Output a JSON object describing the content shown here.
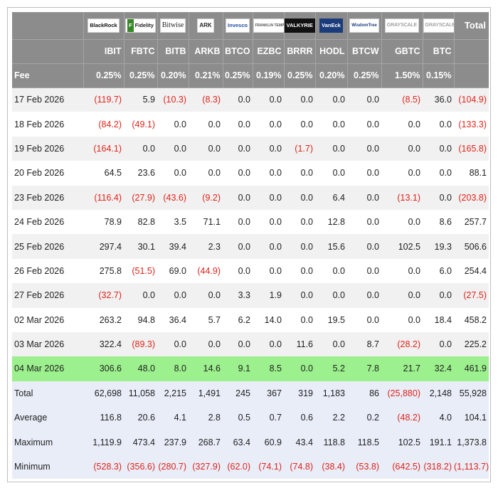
{
  "logos": [
    {
      "name": "blackrock-logo",
      "text": "BlackRock"
    },
    {
      "name": "fidelity-logo",
      "text": "Fidelity"
    },
    {
      "name": "bitwise-logo",
      "text": "Bitwise"
    },
    {
      "name": "ark-logo",
      "text": "ARK"
    },
    {
      "name": "invesco-logo",
      "text": "Invesco"
    },
    {
      "name": "franklin-logo",
      "text": "FRANKLIN TEMPLETON"
    },
    {
      "name": "valkyrie-logo",
      "text": "VALKYRIE"
    },
    {
      "name": "vaneck-logo",
      "text": "VanEck"
    },
    {
      "name": "wisdomtree-logo",
      "text": "WisdomTree"
    },
    {
      "name": "grayscale-logo",
      "text": "GRAYSCALE"
    },
    {
      "name": "grayscale-mini-logo",
      "text": "GRAYSCALE"
    }
  ],
  "total_header": "Total",
  "tickers": [
    "IBIT",
    "FBTC",
    "BITB",
    "ARKB",
    "BTCO",
    "EZBC",
    "BRRR",
    "HODL",
    "BTCW",
    "GBTC",
    "BTC"
  ],
  "fee_label": "Fee",
  "fees": [
    "0.25%",
    "0.25%",
    "0.20%",
    "0.21%",
    "0.25%",
    "0.19%",
    "0.25%",
    "0.20%",
    "0.25%",
    "1.50%",
    "0.15%"
  ],
  "rows": [
    {
      "date": "17 Feb 2026",
      "values": [
        "(119.7)",
        "5.9",
        "(10.3)",
        "(8.3)",
        "0.0",
        "0.0",
        "0.0",
        "0.0",
        "0.0",
        "(8.5)",
        "36.0",
        "(104.9)"
      ]
    },
    {
      "date": "18 Feb 2026",
      "values": [
        "(84.2)",
        "(49.1)",
        "0.0",
        "0.0",
        "0.0",
        "0.0",
        "0.0",
        "0.0",
        "0.0",
        "0.0",
        "0.0",
        "(133.3)"
      ]
    },
    {
      "date": "19 Feb 2026",
      "values": [
        "(164.1)",
        "0.0",
        "0.0",
        "0.0",
        "0.0",
        "0.0",
        "(1.7)",
        "0.0",
        "0.0",
        "0.0",
        "0.0",
        "(165.8)"
      ]
    },
    {
      "date": "20 Feb 2026",
      "values": [
        "64.5",
        "23.6",
        "0.0",
        "0.0",
        "0.0",
        "0.0",
        "0.0",
        "0.0",
        "0.0",
        "0.0",
        "0.0",
        "88.1"
      ]
    },
    {
      "date": "23 Feb 2026",
      "values": [
        "(116.4)",
        "(27.9)",
        "(43.6)",
        "(9.2)",
        "0.0",
        "0.0",
        "0.0",
        "6.4",
        "0.0",
        "(13.1)",
        "0.0",
        "(203.8)"
      ]
    },
    {
      "date": "24 Feb 2026",
      "values": [
        "78.9",
        "82.8",
        "3.5",
        "71.1",
        "0.0",
        "0.0",
        "0.0",
        "12.8",
        "0.0",
        "0.0",
        "8.6",
        "257.7"
      ]
    },
    {
      "date": "25 Feb 2026",
      "values": [
        "297.4",
        "30.1",
        "39.4",
        "2.3",
        "0.0",
        "0.0",
        "0.0",
        "15.6",
        "0.0",
        "102.5",
        "19.3",
        "506.6"
      ]
    },
    {
      "date": "26 Feb 2026",
      "values": [
        "275.8",
        "(51.5)",
        "69.0",
        "(44.9)",
        "0.0",
        "0.0",
        "0.0",
        "0.0",
        "0.0",
        "0.0",
        "6.0",
        "254.4"
      ]
    },
    {
      "date": "27 Feb 2026",
      "values": [
        "(32.7)",
        "0.0",
        "0.0",
        "0.0",
        "3.3",
        "1.9",
        "0.0",
        "0.0",
        "0.0",
        "0.0",
        "0.0",
        "(27.5)"
      ]
    },
    {
      "date": "02 Mar 2026",
      "values": [
        "263.2",
        "94.8",
        "36.4",
        "5.7",
        "6.2",
        "14.0",
        "0.0",
        "19.5",
        "0.0",
        "0.0",
        "18.4",
        "458.2"
      ]
    },
    {
      "date": "03 Mar 2026",
      "values": [
        "322.4",
        "(89.3)",
        "0.0",
        "0.0",
        "0.0",
        "0.0",
        "11.6",
        "0.0",
        "8.7",
        "(28.2)",
        "0.0",
        "225.2"
      ]
    },
    {
      "date": "04 Mar 2026",
      "values": [
        "306.6",
        "48.0",
        "8.0",
        "14.6",
        "9.1",
        "8.5",
        "0.0",
        "5.2",
        "7.8",
        "21.7",
        "32.4",
        "461.9"
      ]
    }
  ],
  "summary": [
    {
      "label": "Total",
      "values": [
        "62,698",
        "11,058",
        "2,215",
        "1,491",
        "245",
        "367",
        "319",
        "1,183",
        "86",
        "(25,880)",
        "2,148",
        "55,928"
      ]
    },
    {
      "label": "Average",
      "values": [
        "116.8",
        "20.6",
        "4.1",
        "2.8",
        "0.5",
        "0.7",
        "0.6",
        "2.2",
        "0.2",
        "(48.2)",
        "4.0",
        "104.1"
      ]
    },
    {
      "label": "Maximum",
      "values": [
        "1,119.9",
        "473.4",
        "237.9",
        "268.7",
        "63.4",
        "60.9",
        "43.4",
        "118.8",
        "118.5",
        "102.5",
        "191.1",
        "1,373.8"
      ]
    },
    {
      "label": "Minimum",
      "values": [
        "(528.3)",
        "(356.6)",
        "(280.7)",
        "(327.9)",
        "(62.0)",
        "(74.1)",
        "(74.8)",
        "(38.4)",
        "(53.8)",
        "(642.5)",
        "(318.2)",
        "(1,113.7)"
      ]
    }
  ],
  "colors": {
    "header_bg": "#8c8c8c",
    "negative": "#e0241b",
    "highlight": "#9cf08d",
    "summary_bg": "#e8edf8",
    "alt_row": "#f1f1f1"
  }
}
